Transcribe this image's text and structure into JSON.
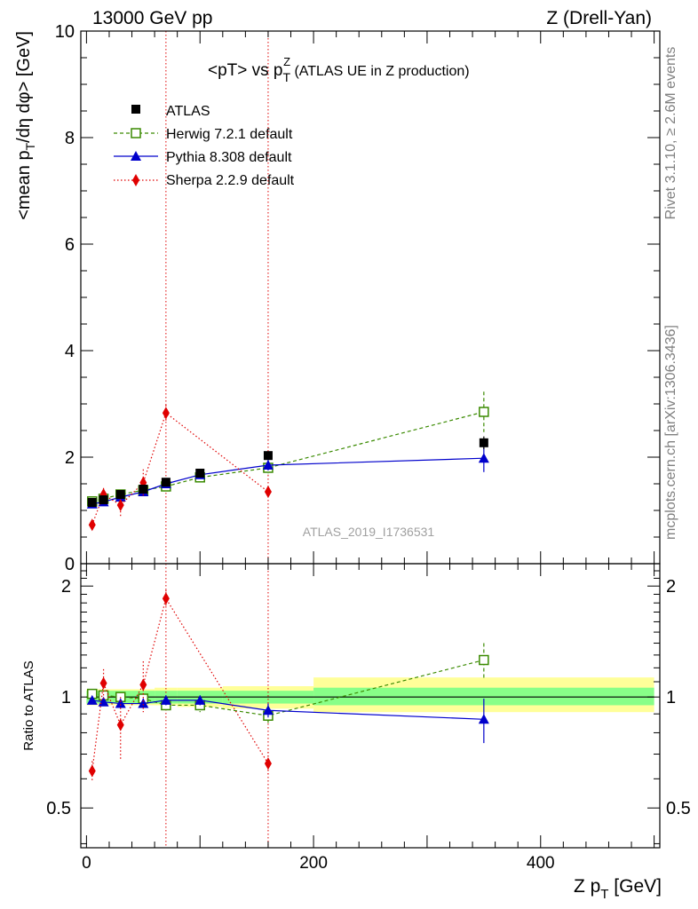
{
  "header": {
    "left": "13000 GeV pp",
    "right": "Z (Drell-Yan)"
  },
  "plot_title": {
    "main": "<pT> vs p",
    "sup": "Z",
    "sub": "T",
    "suffix": " (ATLAS UE in Z production)"
  },
  "side_labels": {
    "rivet": "Rivet 3.1.10, ≥ 2.6M events",
    "mcplots": "mcplots.cern.ch [arXiv:1306.3436]"
  },
  "watermark": "ATLAS_2019_I1736531",
  "colors": {
    "atlas": "#000000",
    "herwig": "#3a8a00",
    "pythia": "#0000cc",
    "sherpa": "#e00000",
    "band_outer": "#ffff99",
    "band_inner": "#88ff88",
    "vline": "#e00000"
  },
  "chart_data": [
    {
      "type": "scatter",
      "panel": "main",
      "ylabel": "<mean p_T/dη dφ> [GeV]",
      "xlim": [
        -5,
        505
      ],
      "ylim": [
        0,
        10
      ],
      "yticks": [
        0,
        2,
        4,
        6,
        8,
        10
      ],
      "ytick_labels": [
        "0",
        "2",
        "4",
        "6",
        "8",
        "10"
      ],
      "vlines": [
        70,
        160
      ],
      "legend_position": "top-left",
      "series": [
        {
          "name": "ATLAS",
          "style": "square-filled",
          "x": [
            5,
            15,
            30,
            50,
            70,
            100,
            160,
            350
          ],
          "y": [
            1.15,
            1.2,
            1.3,
            1.4,
            1.53,
            1.7,
            2.03,
            2.27
          ],
          "err": [
            0.05,
            0.05,
            0.05,
            0.05,
            0.06,
            0.07,
            0.08,
            0.12
          ]
        },
        {
          "name": "Herwig 7.2.1 default",
          "style": "square-open",
          "line": "dashed",
          "x": [
            5,
            15,
            30,
            50,
            70,
            100,
            160,
            350
          ],
          "y": [
            1.17,
            1.22,
            1.3,
            1.38,
            1.45,
            1.62,
            1.8,
            2.85
          ],
          "err": [
            0.03,
            0.03,
            0.04,
            0.05,
            0.06,
            0.08,
            0.12,
            0.38
          ]
        },
        {
          "name": "Pythia 8.308 default",
          "style": "triangle",
          "line": "solid",
          "x": [
            5,
            15,
            30,
            50,
            70,
            100,
            160,
            350
          ],
          "y": [
            1.12,
            1.16,
            1.25,
            1.35,
            1.5,
            1.67,
            1.85,
            1.98
          ],
          "err": [
            0.03,
            0.03,
            0.04,
            0.05,
            0.06,
            0.07,
            0.1,
            0.26
          ]
        },
        {
          "name": "Sherpa 2.2.9 default",
          "style": "diamond",
          "line": "dotted",
          "x": [
            5,
            15,
            30,
            50,
            70,
            160
          ],
          "y": [
            0.73,
            1.3,
            1.1,
            1.52,
            2.83,
            1.35
          ],
          "err": [
            0.05,
            0.12,
            0.22,
            0.25,
            0.15,
            0.1
          ]
        }
      ]
    },
    {
      "type": "scatter",
      "panel": "ratio",
      "ylabel": "Ratio to ATLAS",
      "xlabel": "Z p_T [GeV]",
      "xlim": [
        -5,
        505
      ],
      "ylim": [
        0.39,
        2.3
      ],
      "log_y": true,
      "reference_line": 1,
      "yticks": [
        0.5,
        1,
        2
      ],
      "ytick_labels": [
        "0.5",
        "1",
        "2"
      ],
      "xticks": [
        0,
        200,
        400
      ],
      "xtick_labels": [
        "0",
        "200",
        "400"
      ],
      "bands": [
        {
          "x0": 0,
          "x1": 10,
          "inner": [
            0.96,
            1.04
          ],
          "outer": [
            0.95,
            1.05
          ]
        },
        {
          "x0": 10,
          "x1": 20,
          "inner": [
            0.96,
            1.04
          ],
          "outer": [
            0.95,
            1.05
          ]
        },
        {
          "x0": 20,
          "x1": 40,
          "inner": [
            0.96,
            1.04
          ],
          "outer": [
            0.95,
            1.05
          ]
        },
        {
          "x0": 40,
          "x1": 60,
          "inner": [
            0.96,
            1.04
          ],
          "outer": [
            0.95,
            1.05
          ]
        },
        {
          "x0": 60,
          "x1": 80,
          "inner": [
            0.96,
            1.04
          ],
          "outer": [
            0.95,
            1.06
          ]
        },
        {
          "x0": 80,
          "x1": 120,
          "inner": [
            0.96,
            1.04
          ],
          "outer": [
            0.94,
            1.06
          ]
        },
        {
          "x0": 120,
          "x1": 200,
          "inner": [
            0.96,
            1.04
          ],
          "outer": [
            0.93,
            1.07
          ]
        },
        {
          "x0": 200,
          "x1": 500,
          "inner": [
            0.95,
            1.06
          ],
          "outer": [
            0.91,
            1.13
          ]
        }
      ],
      "series": [
        {
          "name": "Herwig 7.2.1 default",
          "x": [
            5,
            15,
            30,
            50,
            70,
            100,
            160,
            350
          ],
          "y": [
            1.02,
            1.01,
            1.0,
            0.99,
            0.95,
            0.95,
            0.89,
            1.26
          ],
          "err": [
            0.02,
            0.02,
            0.03,
            0.03,
            0.03,
            0.04,
            0.05,
            0.14
          ]
        },
        {
          "name": "Pythia 8.308 default",
          "x": [
            5,
            15,
            30,
            50,
            70,
            100,
            160,
            350
          ],
          "y": [
            0.98,
            0.97,
            0.96,
            0.96,
            0.98,
            0.98,
            0.92,
            0.87
          ],
          "err": [
            0.02,
            0.02,
            0.02,
            0.03,
            0.03,
            0.03,
            0.04,
            0.12
          ]
        },
        {
          "name": "Sherpa 2.2.9 default",
          "x": [
            5,
            15,
            30,
            50,
            70,
            160
          ],
          "y": [
            0.63,
            1.09,
            0.84,
            1.08,
            1.85,
            0.66
          ],
          "err": [
            0.04,
            0.1,
            0.16,
            0.17,
            0.1,
            0.05
          ]
        }
      ]
    }
  ]
}
